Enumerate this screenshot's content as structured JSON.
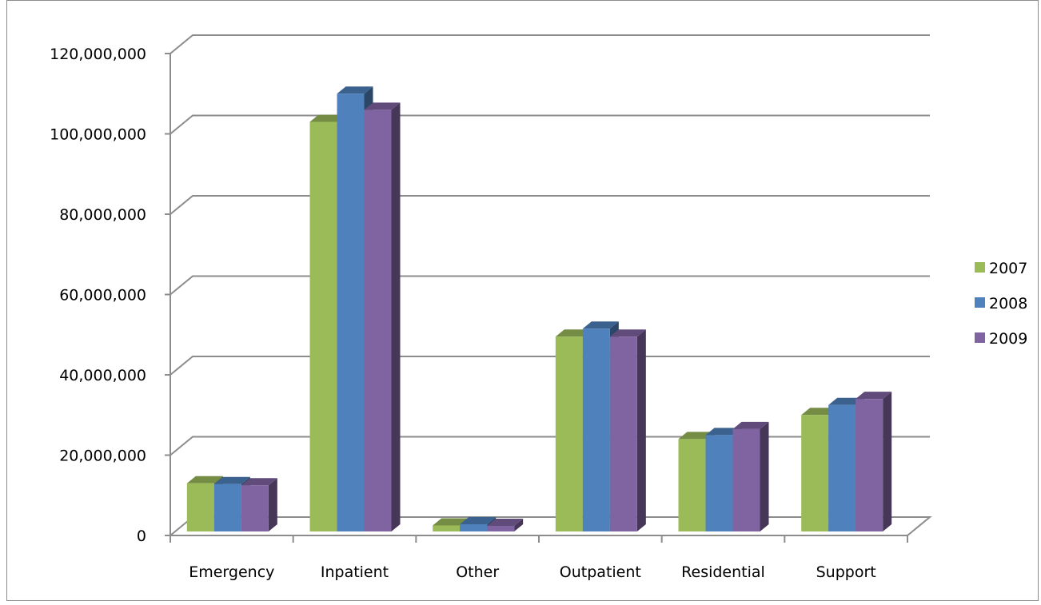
{
  "chart_data": {
    "type": "bar",
    "style": "3d-clustered-column",
    "categories": [
      "Emergency",
      "Inpatient",
      "Other",
      "Outpatient",
      "Residential",
      "Support"
    ],
    "series": [
      {
        "name": "2007",
        "color": "#9BBB59",
        "values": [
          12000000,
          102000000,
          1500000,
          48500000,
          23000000,
          29000000
        ]
      },
      {
        "name": "2008",
        "color": "#4F81BD",
        "values": [
          11800000,
          109000000,
          1800000,
          50500000,
          24000000,
          31500000
        ]
      },
      {
        "name": "2009",
        "color": "#8064A2",
        "values": [
          11500000,
          105000000,
          1400000,
          48500000,
          25500000,
          33000000
        ]
      }
    ],
    "ylim": [
      0,
      120000000
    ],
    "yticks": [
      "0",
      "20,000,000",
      "40,000,000",
      "60,000,000",
      "80,000,000",
      "100,000,000",
      "120,000,000"
    ],
    "grid": true,
    "legend_position": "right",
    "title": "",
    "xlabel": "",
    "ylabel": ""
  }
}
